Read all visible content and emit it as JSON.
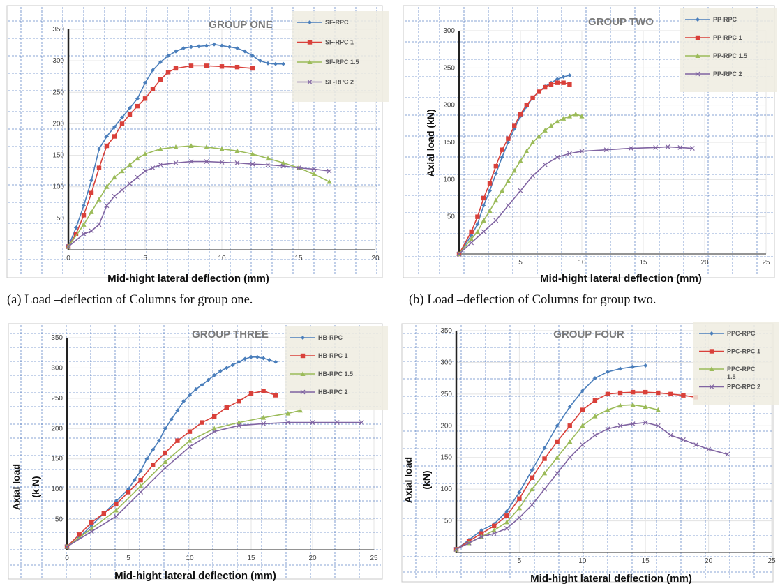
{
  "colors": {
    "s1": "#4a7ebb",
    "s2": "#d9403a",
    "s3": "#9bbb59",
    "s4": "#8064a2",
    "legend_bg": "#eeece1",
    "dash": "#2f5fb3"
  },
  "captions": {
    "a": "(a) Load –deflection of Columns for group one.",
    "b": "(b) Load –deflection of Columns for group two."
  },
  "chart_data": [
    {
      "type": "line",
      "title": "GROUP ONE",
      "xlabel": "Mid-hight lateral deflection (mm)",
      "ylabel": "",
      "xlim": [
        0,
        20
      ],
      "ylim": [
        0,
        350
      ],
      "xticks": [
        "0",
        "5",
        "10",
        "15",
        "20"
      ],
      "yticks": [
        "50",
        "100",
        "150",
        "200",
        "250",
        "300",
        "350"
      ],
      "series": [
        {
          "name": "SF-RPC",
          "marker": "diamond",
          "x": [
            0,
            0.5,
            1,
            1.5,
            2,
            2.5,
            3,
            3.5,
            4,
            4.5,
            5,
            5.5,
            6,
            6.5,
            7,
            7.5,
            8,
            8.5,
            9,
            9.5,
            10,
            10.5,
            11,
            11.5,
            12,
            12.5,
            13,
            13.5,
            14
          ],
          "y": [
            5,
            35,
            70,
            110,
            160,
            180,
            195,
            210,
            225,
            240,
            265,
            285,
            298,
            308,
            315,
            320,
            322,
            323,
            324,
            326,
            324,
            322,
            320,
            315,
            308,
            300,
            296,
            295,
            295
          ]
        },
        {
          "name": "SF-RPC 1",
          "marker": "square",
          "x": [
            0,
            0.5,
            1,
            1.5,
            2,
            2.5,
            3,
            3.5,
            4,
            4.5,
            5,
            5.5,
            6,
            6.5,
            7,
            8,
            9,
            10,
            11,
            12
          ],
          "y": [
            5,
            25,
            55,
            90,
            130,
            165,
            180,
            200,
            215,
            228,
            240,
            255,
            270,
            282,
            288,
            292,
            292,
            291,
            290,
            288
          ]
        },
        {
          "name": "SF-RPC 1.5",
          "marker": "triangle",
          "x": [
            0,
            1,
            1.5,
            2,
            2.5,
            3,
            3.5,
            4,
            4.5,
            5,
            6,
            7,
            8,
            9,
            10,
            11,
            12,
            13,
            14,
            15,
            16,
            17
          ],
          "y": [
            5,
            40,
            60,
            80,
            100,
            115,
            125,
            135,
            145,
            152,
            160,
            163,
            165,
            163,
            160,
            157,
            152,
            145,
            138,
            130,
            120,
            108
          ]
        },
        {
          "name": "SF-RPC 2",
          "marker": "x",
          "x": [
            0,
            1,
            1.5,
            2,
            2.5,
            3,
            3.5,
            4,
            4.5,
            5,
            5.5,
            6,
            7,
            8,
            9,
            10,
            11,
            12,
            13,
            14,
            15,
            16,
            17
          ],
          "y": [
            5,
            25,
            30,
            40,
            70,
            85,
            95,
            105,
            115,
            125,
            130,
            135,
            138,
            140,
            140,
            139,
            138,
            136,
            135,
            133,
            130,
            128,
            125
          ]
        }
      ]
    },
    {
      "type": "line",
      "title": "GROUP TWO",
      "xlabel": "Mid-hight lateral deflection (mm)",
      "ylabel": "Axial load (kN)",
      "xlim": [
        0,
        25
      ],
      "ylim": [
        0,
        300
      ],
      "xticks": [
        "",
        "5",
        "10",
        "15",
        "20",
        "25"
      ],
      "yticks": [
        "50",
        "100",
        "150",
        "200",
        "250",
        "300"
      ],
      "series": [
        {
          "name": "PP-RPC",
          "marker": "diamond",
          "x": [
            0,
            1,
            1.5,
            2,
            2.5,
            3,
            3.5,
            4,
            4.5,
            5,
            5.5,
            6,
            6.5,
            7,
            7.5,
            8,
            8.5,
            9
          ],
          "y": [
            0,
            25,
            40,
            65,
            85,
            108,
            130,
            150,
            168,
            185,
            198,
            210,
            218,
            225,
            230,
            235,
            238,
            240
          ]
        },
        {
          "name": "PP-RPC 1",
          "marker": "square",
          "x": [
            0,
            1,
            1.5,
            2,
            2.5,
            3,
            3.5,
            4,
            4.5,
            5,
            5.5,
            6,
            6.5,
            7,
            7.5,
            8,
            8.5,
            9
          ],
          "y": [
            0,
            30,
            50,
            75,
            95,
            118,
            140,
            155,
            172,
            188,
            200,
            210,
            218,
            224,
            228,
            230,
            230,
            228
          ]
        },
        {
          "name": "PP-RPC 1.5",
          "marker": "triangle",
          "x": [
            0,
            1,
            1.5,
            2,
            2.5,
            3,
            3.5,
            4,
            4.5,
            5,
            5.5,
            6,
            6.5,
            7,
            7.5,
            8,
            8.5,
            9,
            9.5,
            10
          ],
          "y": [
            0,
            20,
            30,
            45,
            58,
            72,
            85,
            98,
            112,
            125,
            138,
            150,
            158,
            166,
            172,
            178,
            182,
            185,
            188,
            185
          ]
        },
        {
          "name": "PP-RPC 2",
          "marker": "x",
          "x": [
            0,
            1,
            2,
            3,
            4,
            5,
            6,
            7,
            8,
            9,
            10,
            12,
            14,
            16,
            17,
            18,
            19
          ],
          "y": [
            0,
            15,
            30,
            45,
            65,
            85,
            105,
            120,
            130,
            135,
            138,
            140,
            142,
            143,
            144,
            143,
            142
          ]
        }
      ]
    },
    {
      "type": "line",
      "title": "GROUP THREE",
      "xlabel": "Mid-hight lateral deflection (mm)",
      "ylabel": "Axial load",
      "ylabel2": "(k N)",
      "xlim": [
        0,
        25
      ],
      "ylim": [
        0,
        350
      ],
      "xticks": [
        "0",
        "5",
        "10",
        "15",
        "20",
        "25"
      ],
      "yticks": [
        "50",
        "100",
        "150",
        "200",
        "250",
        "300",
        "350"
      ],
      "series": [
        {
          "name": "HB-RPC",
          "marker": "diamond",
          "x": [
            0,
            1,
            2,
            3,
            4,
            5,
            5.5,
            6,
            6.5,
            7,
            7.5,
            8,
            8.5,
            9,
            9.5,
            10,
            10.5,
            11,
            11.5,
            12,
            12.5,
            13,
            13.5,
            14,
            14.5,
            15,
            15.5,
            16,
            16.5,
            17
          ],
          "y": [
            5,
            20,
            40,
            60,
            80,
            100,
            115,
            130,
            150,
            165,
            180,
            200,
            215,
            230,
            245,
            255,
            265,
            272,
            280,
            288,
            295,
            300,
            305,
            310,
            315,
            318,
            318,
            316,
            313,
            310
          ]
        },
        {
          "name": "HB-RPC 1",
          "marker": "square",
          "x": [
            0,
            1,
            2,
            3,
            4,
            5,
            6,
            7,
            8,
            9,
            10,
            11,
            12,
            13,
            14,
            15,
            16,
            17
          ],
          "y": [
            5,
            25,
            45,
            60,
            75,
            95,
            115,
            140,
            160,
            180,
            195,
            210,
            220,
            235,
            245,
            258,
            262,
            255
          ]
        },
        {
          "name": "HB-RPC 1.5",
          "marker": "triangle",
          "x": [
            0,
            2,
            4,
            6,
            8,
            10,
            12,
            14,
            16,
            18,
            19
          ],
          "y": [
            5,
            35,
            65,
            105,
            145,
            180,
            200,
            210,
            218,
            225,
            230
          ]
        },
        {
          "name": "HB-RPC 2",
          "marker": "x",
          "x": [
            0,
            2,
            4,
            6,
            8,
            10,
            12,
            14,
            16,
            18,
            20,
            22,
            24
          ],
          "y": [
            5,
            30,
            55,
            95,
            135,
            170,
            195,
            205,
            208,
            210,
            210,
            210,
            210
          ]
        }
      ]
    },
    {
      "type": "line",
      "title": "GROUP FOUR",
      "xlabel": "Mid-hight lateral deflection (mm)",
      "ylabel": "Axial load",
      "ylabel2": "(kN)",
      "xlim": [
        0,
        25
      ],
      "ylim": [
        0,
        350
      ],
      "xticks": [
        "",
        "5",
        "10",
        "15",
        "20",
        "25"
      ],
      "yticks": [
        "50",
        "100",
        "150",
        "200",
        "250",
        "300",
        "350"
      ],
      "legend_labels": [
        "PPC-RPC",
        "PPC-RPC   1",
        "PPC-RPC",
        "PPC-RPC   2"
      ],
      "legend_sub": "1.5",
      "series": [
        {
          "name": "PPC-RPC",
          "marker": "diamond",
          "x": [
            0,
            1,
            2,
            3,
            4,
            5,
            6,
            7,
            8,
            9,
            10,
            11,
            12,
            13,
            14,
            15
          ],
          "y": [
            5,
            20,
            35,
            45,
            65,
            95,
            130,
            165,
            200,
            230,
            255,
            275,
            285,
            290,
            293,
            295
          ]
        },
        {
          "name": "PPC-RPC 1",
          "marker": "square",
          "x": [
            0,
            1,
            2,
            3,
            4,
            5,
            6,
            7,
            8,
            9,
            10,
            11,
            12,
            13,
            14,
            15,
            16,
            17,
            18,
            19
          ],
          "y": [
            5,
            18,
            30,
            42,
            58,
            85,
            118,
            148,
            175,
            200,
            225,
            240,
            250,
            252,
            253,
            253,
            252,
            250,
            248,
            245
          ]
        },
        {
          "name": "PPC-RPC 1.5",
          "marker": "triangle",
          "x": [
            0,
            1,
            2,
            3,
            4,
            5,
            6,
            7,
            8,
            9,
            10,
            11,
            12,
            13,
            14,
            15,
            16
          ],
          "y": [
            5,
            15,
            25,
            35,
            48,
            70,
            100,
            125,
            150,
            175,
            200,
            215,
            225,
            232,
            233,
            230,
            225
          ]
        },
        {
          "name": "PPC-RPC 2",
          "marker": "x",
          "x": [
            0,
            1,
            2,
            3,
            4,
            5,
            6,
            7,
            8,
            9,
            10,
            11,
            12,
            13,
            14,
            15,
            16,
            17,
            18,
            19,
            20,
            21.5
          ],
          "y": [
            5,
            15,
            25,
            30,
            38,
            55,
            75,
            100,
            125,
            150,
            170,
            185,
            195,
            200,
            203,
            205,
            200,
            185,
            178,
            170,
            163,
            155
          ]
        }
      ]
    }
  ]
}
